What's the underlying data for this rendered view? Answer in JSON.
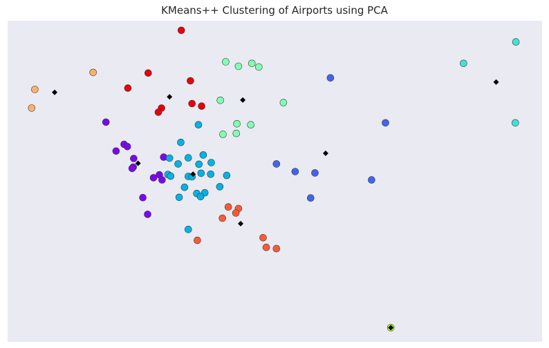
{
  "chart_data": {
    "type": "scatter",
    "title": "KMeans++ Clustering of Airports using PCA",
    "xlabel": "",
    "ylabel": "",
    "xlim": [
      0,
      100
    ],
    "ylim": [
      0,
      100
    ],
    "grid": false,
    "background": "#eaeaf2",
    "point_edge_color": "#3a3a3a",
    "centroid_color": "#000000",
    "series": [
      {
        "color": "#e8000b",
        "points": [
          [
            32.5,
            97
          ],
          [
            26.3,
            83.7
          ],
          [
            22.5,
            79
          ],
          [
            34.2,
            81.3
          ],
          [
            34.5,
            74.2
          ],
          [
            28.8,
            72.8
          ],
          [
            36.3,
            73.4
          ],
          [
            28.2,
            71.5
          ]
        ]
      },
      {
        "color": "#fdb06b",
        "points": [
          [
            5.1,
            78.6
          ],
          [
            16,
            83.9
          ],
          [
            4.5,
            72.8
          ]
        ]
      },
      {
        "color": "#80ffb4",
        "points": [
          [
            40.8,
            87.2
          ],
          [
            43.2,
            85.8
          ],
          [
            45.7,
            86.7
          ],
          [
            47,
            85.6
          ],
          [
            39.8,
            75.2
          ],
          [
            51.6,
            74.5
          ],
          [
            42.9,
            67.9
          ],
          [
            45.5,
            67.6
          ],
          [
            40.3,
            64.6
          ],
          [
            42.8,
            64.9
          ]
        ]
      },
      {
        "color": "#4363f0",
        "points": [
          [
            60.4,
            82.2
          ],
          [
            70.7,
            68.2
          ],
          [
            50.3,
            55.4
          ],
          [
            53.8,
            53
          ],
          [
            57.5,
            52.6
          ],
          [
            68.1,
            50.4
          ],
          [
            56.7,
            44.8
          ]
        ]
      },
      {
        "color": "#41e2d3",
        "points": [
          [
            95.1,
            93.4
          ],
          [
            85.3,
            86.7
          ],
          [
            95,
            68.2
          ]
        ]
      },
      {
        "color": "#7b07f1",
        "points": [
          [
            18.4,
            68.4
          ],
          [
            21.8,
            61.5
          ],
          [
            22.4,
            60.8
          ],
          [
            20.3,
            59.4
          ],
          [
            23.6,
            57.1
          ],
          [
            29.2,
            57.5
          ],
          [
            23.5,
            54.4
          ],
          [
            23.3,
            54
          ],
          [
            28.4,
            52
          ],
          [
            27.3,
            51.1
          ],
          [
            28.9,
            50.4
          ],
          [
            25.3,
            44.9
          ],
          [
            26.2,
            39.7
          ]
        ]
      },
      {
        "color": "#00b4e6",
        "points": [
          [
            35.7,
            67.6
          ],
          [
            32.4,
            62.1
          ],
          [
            36.6,
            58.2
          ],
          [
            30.3,
            57.2
          ],
          [
            33.8,
            57.3
          ],
          [
            38.1,
            55.8
          ],
          [
            31.9,
            55.4
          ],
          [
            35.8,
            55.3
          ],
          [
            36.2,
            52.5
          ],
          [
            38,
            52.2
          ],
          [
            30,
            52.1
          ],
          [
            30.5,
            51.6
          ],
          [
            41,
            51.8
          ],
          [
            33.8,
            51.5
          ],
          [
            34.5,
            51.4
          ],
          [
            33.1,
            48.1
          ],
          [
            39.7,
            48.3
          ],
          [
            35.4,
            46.2
          ],
          [
            36.9,
            46.4
          ],
          [
            32.1,
            45
          ],
          [
            36.1,
            45.2
          ],
          [
            33.8,
            35
          ]
        ]
      },
      {
        "color": "#fc5a34",
        "points": [
          [
            41.3,
            42
          ],
          [
            43.2,
            41.5
          ],
          [
            42.7,
            40.1
          ],
          [
            40.2,
            38.5
          ],
          [
            47.8,
            32.4
          ],
          [
            48.4,
            29.4
          ],
          [
            50.3,
            29
          ],
          [
            35.5,
            31.6
          ]
        ]
      },
      {
        "color": "#a8ff00",
        "points": [
          [
            71.7,
            4.4
          ]
        ]
      }
    ],
    "centroids": [
      [
        30.3,
        76.3
      ],
      [
        8.8,
        77.7
      ],
      [
        44,
        75.3
      ],
      [
        59.5,
        58.7
      ],
      [
        91.4,
        80.9
      ],
      [
        24.4,
        55.6
      ],
      [
        34.7,
        52.2
      ],
      [
        43.6,
        36.8
      ],
      [
        71.7,
        4.4
      ]
    ]
  }
}
